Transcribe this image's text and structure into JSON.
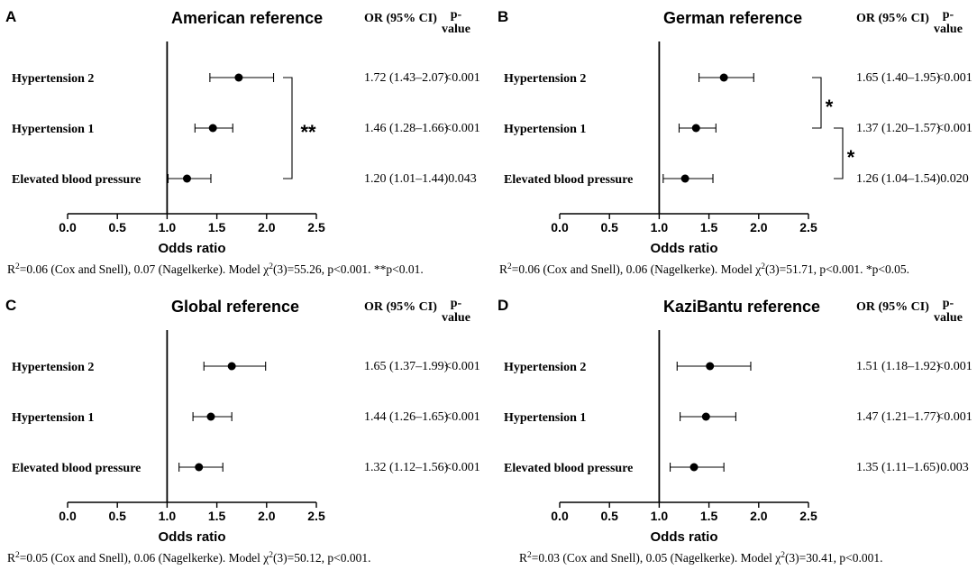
{
  "figure": {
    "x_axis_label": "Odds ratio",
    "ticks": [
      0.0,
      0.5,
      1.0,
      1.5,
      2.0,
      2.5
    ],
    "tick_labels": [
      "0.0",
      "0.5",
      "1.0",
      "1.5",
      "2.0",
      "2.5"
    ],
    "or_header": "OR (95% CI)",
    "p_header_line1": "p-",
    "p_header_line2": "value",
    "point_color": "#000000"
  },
  "chart_data": [
    {
      "type": "forest",
      "panel": "A",
      "title": "American reference",
      "xlabel": "Odds ratio",
      "xlim": [
        0,
        2.5
      ],
      "reference_line": 1.0,
      "rows": [
        {
          "label": "Hypertension 2",
          "or": 1.72,
          "lo": 1.43,
          "hi": 2.07,
          "ci_text": "1.72 (1.43–2.07)",
          "p": "<0.001"
        },
        {
          "label": "Hypertension 1",
          "or": 1.46,
          "lo": 1.28,
          "hi": 1.66,
          "ci_text": "1.46 (1.28–1.66)",
          "p": "<0.001"
        },
        {
          "label": "Elevated blood pressure",
          "or": 1.2,
          "lo": 1.01,
          "hi": 1.44,
          "ci_text": "1.20 (1.01–1.44)",
          "p": "0.043"
        }
      ],
      "brackets": [
        {
          "rows": [
            0,
            2
          ],
          "mark": "**"
        }
      ],
      "footnote": {
        "pre": "R",
        "sup1": "2",
        "mid": "=0.06 (Cox and Snell), 0.07 (Nagelkerke). Model χ",
        "sup2": "2",
        "post": "(3)=55.26, p<0.001. **p<0.01."
      }
    },
    {
      "type": "forest",
      "panel": "B",
      "title": "German reference",
      "xlabel": "Odds ratio",
      "xlim": [
        0,
        2.5
      ],
      "reference_line": 1.0,
      "rows": [
        {
          "label": "Hypertension 2",
          "or": 1.65,
          "lo": 1.4,
          "hi": 1.95,
          "ci_text": "1.65 (1.40–1.95)",
          "p": "<0.001"
        },
        {
          "label": "Hypertension 1",
          "or": 1.37,
          "lo": 1.2,
          "hi": 1.57,
          "ci_text": "1.37 (1.20–1.57)",
          "p": "<0.001"
        },
        {
          "label": "Elevated blood pressure",
          "or": 1.26,
          "lo": 1.04,
          "hi": 1.54,
          "ci_text": "1.26 (1.04–1.54)",
          "p": "0.020"
        }
      ],
      "brackets": [
        {
          "rows": [
            0,
            1
          ],
          "mark": "*"
        },
        {
          "rows": [
            1,
            2
          ],
          "mark": "*"
        }
      ],
      "footnote": {
        "pre": "R",
        "sup1": "2",
        "mid": "=0.06 (Cox and Snell), 0.06 (Nagelkerke). Model χ",
        "sup2": "2",
        "post": "(3)=51.71, p<0.001. *p<0.05."
      }
    },
    {
      "type": "forest",
      "panel": "C",
      "title": "Global reference",
      "xlabel": "Odds ratio",
      "xlim": [
        0,
        2.5
      ],
      "reference_line": 1.0,
      "rows": [
        {
          "label": "Hypertension 2",
          "or": 1.65,
          "lo": 1.37,
          "hi": 1.99,
          "ci_text": "1.65 (1.37–1.99)",
          "p": "<0.001"
        },
        {
          "label": "Hypertension 1",
          "or": 1.44,
          "lo": 1.26,
          "hi": 1.65,
          "ci_text": "1.44 (1.26–1.65)",
          "p": "<0.001"
        },
        {
          "label": "Elevated blood pressure",
          "or": 1.32,
          "lo": 1.12,
          "hi": 1.56,
          "ci_text": "1.32 (1.12–1.56)",
          "p": "<0.001"
        }
      ],
      "brackets": [],
      "footnote": {
        "pre": "R",
        "sup1": "2",
        "mid": "=0.05 (Cox and Snell), 0.06 (Nagelkerke). Model χ",
        "sup2": "2",
        "post": "(3)=50.12, p<0.001."
      }
    },
    {
      "type": "forest",
      "panel": "D",
      "title": "KaziBantu reference",
      "xlabel": "Odds ratio",
      "xlim": [
        0,
        2.5
      ],
      "reference_line": 1.0,
      "rows": [
        {
          "label": "Hypertension 2",
          "or": 1.51,
          "lo": 1.18,
          "hi": 1.92,
          "ci_text": "1.51 (1.18–1.92)",
          "p": "<0.001"
        },
        {
          "label": "Hypertension 1",
          "or": 1.47,
          "lo": 1.21,
          "hi": 1.77,
          "ci_text": "1.47 (1.21–1.77)",
          "p": "<0.001"
        },
        {
          "label": "Elevated blood pressure",
          "or": 1.35,
          "lo": 1.11,
          "hi": 1.65,
          "ci_text": "1.35 (1.11–1.65)",
          "p": "0.003"
        }
      ],
      "brackets": [],
      "footnote": {
        "pre": "R",
        "sup1": "2",
        "mid": "=0.03 (Cox and Snell), 0.05 (Nagelkerke). Model χ",
        "sup2": "2",
        "post": "(3)=30.41, p<0.001."
      }
    }
  ]
}
